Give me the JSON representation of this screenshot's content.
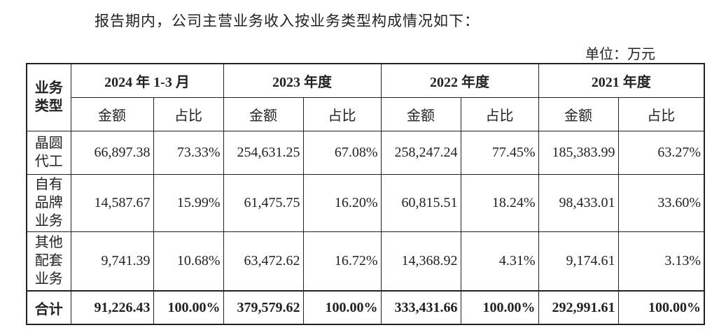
{
  "header": {
    "intro": "报告期内，公司主营业务收入按业务类型构成情况如下：",
    "unit": "单位：万元"
  },
  "table": {
    "corner": "业务类型",
    "periods": [
      "2024 年 1-3 月",
      "2023 年度",
      "2022 年度",
      "2021 年度"
    ],
    "subheaders": [
      "金额",
      "占比",
      "金额",
      "占比",
      "金额",
      "占比",
      "金额",
      "占比"
    ],
    "rows": [
      {
        "label": "晶圆代工",
        "cells": [
          "66,897.38",
          "73.33%",
          "254,631.25",
          "67.08%",
          "258,247.24",
          "77.45%",
          "185,383.99",
          "63.27%"
        ]
      },
      {
        "label": "自有品牌业务",
        "cells": [
          "14,587.67",
          "15.99%",
          "61,475.75",
          "16.20%",
          "60,815.51",
          "18.24%",
          "98,433.01",
          "33.60%"
        ]
      },
      {
        "label": "其他配套业务",
        "cells": [
          "9,741.39",
          "10.68%",
          "63,472.62",
          "16.72%",
          "14,368.92",
          "4.31%",
          "9,174.61",
          "3.13%"
        ]
      }
    ],
    "total": {
      "label": "合计",
      "cells": [
        "91,226.43",
        "100.00%",
        "379,579.62",
        "100.00%",
        "333,431.66",
        "100.00%",
        "292,991.61",
        "100.00%"
      ]
    }
  }
}
